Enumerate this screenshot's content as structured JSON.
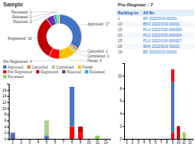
{
  "chart_data": [
    {
      "type": "donut",
      "title": "Sample",
      "categories": [
        "Approved",
        "Cancelled",
        "Completed",
        "Partial",
        "Pre-Registered",
        "Registered",
        "Rejected",
        "Released",
        "Reviewed"
      ],
      "values": [
        17,
        1,
        1,
        6,
        4,
        16,
        3,
        1,
        1
      ],
      "colors": [
        "#4472c4",
        "#ed7d31",
        "#a9d18e",
        "#ffc000",
        "#ff0000",
        "#c00000",
        "#7030a0",
        "#00b0f0",
        "#92d050"
      ],
      "value_labels": [
        "Approved: 17",
        "Cancelled: 1",
        "Completed: 1",
        "Partial: 6",
        "Pre Registered: 4",
        "Registered: 16",
        "Rejected: 3",
        "Released: 1",
        "Reviewed: 1"
      ],
      "data_labels": true,
      "legend": "bottom"
    },
    {
      "type": "bar",
      "categories": [
        "1",
        "2",
        "3",
        "4",
        "5",
        "6",
        "7",
        "8",
        "9",
        "10",
        "11",
        "12"
      ],
      "series": [
        {
          "color": "#4472c4",
          "values": [
            2,
            0,
            0,
            0,
            0,
            0,
            0,
            0,
            0,
            0,
            0,
            0
          ]
        },
        {
          "color": "#4472c4",
          "values": [
            0,
            0,
            0,
            0,
            1,
            0,
            0,
            0,
            0,
            0,
            0,
            0
          ]
        },
        {
          "color": "#a9d18e",
          "values": [
            0,
            0,
            0,
            0,
            5,
            0,
            0,
            0,
            0,
            0,
            0,
            0
          ]
        },
        {
          "color": "#ff0000",
          "values": [
            0,
            0,
            0,
            0,
            0,
            0,
            0,
            4,
            0,
            0,
            0,
            0
          ]
        },
        {
          "color": "#4472c4",
          "values": [
            0,
            0,
            0,
            0,
            0,
            0,
            0,
            13,
            0,
            0,
            0,
            0
          ]
        },
        {
          "color": "#ff0000",
          "values": [
            0,
            0,
            0,
            0,
            0,
            0,
            0,
            0,
            2,
            0,
            0,
            0
          ]
        },
        {
          "color": "#c00000",
          "values": [
            0,
            0,
            0,
            0,
            0,
            0,
            0,
            0,
            2,
            0,
            0,
            0
          ]
        },
        {
          "color": "#92d050",
          "values": [
            0,
            0,
            0,
            0,
            0,
            0,
            0,
            0,
            0,
            0,
            1,
            0
          ]
        }
      ],
      "stacked": true,
      "ylim": [
        0,
        18
      ],
      "yticks": [
        0,
        2,
        4,
        6,
        8,
        10,
        12,
        14,
        16
      ]
    },
    {
      "type": "table",
      "title": "Pre-Register : 7",
      "columns": [
        "Backlog no",
        "All No"
      ],
      "rows": [
        [
          "1",
          "BF 2022/019-00001"
        ],
        [
          "10",
          "BKK 2022/019-00001"
        ],
        [
          "15",
          "PLU 2022/019-000006"
        ],
        [
          "23",
          "PLU 2022/019-000004"
        ],
        [
          "25",
          "PLU 2022/019-000007"
        ],
        [
          "28",
          "BKK 2022/019-00001"
        ],
        [
          "29",
          "BF 2022/019-00001"
        ]
      ]
    },
    {
      "type": "bar",
      "categories": [
        "1",
        "2",
        "3",
        "4",
        "5",
        "6",
        "7",
        "8",
        "9",
        "10",
        "11",
        "12"
      ],
      "series": [
        {
          "color": "#ff0000",
          "values": [
            0,
            0,
            0,
            0,
            0,
            0,
            0,
            0,
            1,
            0,
            0,
            0
          ]
        },
        {
          "color": "#4472c4",
          "values": [
            0,
            0,
            0,
            0,
            0,
            0,
            0,
            0,
            8,
            0,
            0,
            0
          ]
        },
        {
          "color": "#ff0000",
          "values": [
            0,
            0,
            0,
            0,
            0,
            0,
            0,
            0,
            2,
            0,
            0,
            0
          ]
        },
        {
          "color": "#c00000",
          "values": [
            0,
            0,
            0,
            0,
            0,
            0,
            0,
            0,
            0,
            2,
            0,
            0
          ]
        },
        {
          "color": "#92d050",
          "values": [
            0,
            0,
            0,
            0,
            0,
            0,
            0,
            0,
            0,
            0,
            1,
            0
          ]
        }
      ],
      "stacked": true,
      "ylim": [
        0,
        12
      ],
      "yticks": [
        0,
        2,
        4,
        6,
        8,
        10
      ]
    }
  ]
}
